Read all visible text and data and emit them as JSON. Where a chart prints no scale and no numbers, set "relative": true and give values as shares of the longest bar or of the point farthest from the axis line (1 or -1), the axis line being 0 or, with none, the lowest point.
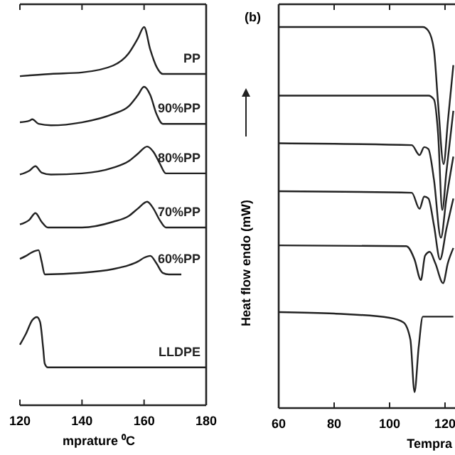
{
  "chart_data": [
    {
      "type": "line",
      "relative": true,
      "xlabel": "mprature ⁰C",
      "xlim": [
        120,
        180
      ],
      "xticks": [
        120,
        140,
        160,
        180
      ],
      "series": [
        {
          "name": "PP",
          "color": "#222222",
          "x": [
            120,
            130,
            140,
            150,
            155,
            158,
            160,
            162,
            164,
            166,
            170,
            180
          ],
          "values": [
            0.87,
            0.876,
            0.88,
            0.898,
            0.93,
            0.97,
            1.0,
            0.94,
            0.895,
            0.876,
            0.876,
            0.876
          ]
        },
        {
          "name": "90%PP",
          "color": "#222222",
          "x": [
            120,
            123,
            124,
            126,
            130,
            140,
            150,
            155,
            158,
            160,
            162,
            164,
            166,
            170,
            180
          ],
          "values": [
            0.748,
            0.752,
            0.756,
            0.744,
            0.74,
            0.748,
            0.77,
            0.79,
            0.82,
            0.842,
            0.82,
            0.77,
            0.744,
            0.744,
            0.744
          ]
        },
        {
          "name": "80%PP",
          "color": "#222222",
          "x": [
            120,
            123,
            125,
            127,
            130,
            140,
            150,
            155,
            158,
            161,
            163,
            165,
            167,
            170,
            180
          ],
          "values": [
            0.61,
            0.62,
            0.632,
            0.615,
            0.61,
            0.613,
            0.628,
            0.645,
            0.665,
            0.684,
            0.67,
            0.64,
            0.613,
            0.613,
            0.613
          ]
        },
        {
          "name": "70%PP",
          "color": "#222222",
          "x": [
            120,
            123,
            125,
            127,
            129,
            140,
            150,
            155,
            158,
            161,
            163,
            165,
            167,
            180
          ],
          "values": [
            0.478,
            0.49,
            0.508,
            0.485,
            0.47,
            0.47,
            0.485,
            0.5,
            0.52,
            0.538,
            0.52,
            0.49,
            0.47,
            0.47
          ]
        },
        {
          "name": "60%PP",
          "color": "#222222",
          "x": [
            120,
            122,
            124,
            126,
            127,
            128,
            140,
            150,
            155,
            158,
            160,
            162,
            164,
            166,
            168,
            172
          ],
          "values": [
            0.387,
            0.395,
            0.405,
            0.41,
            0.38,
            0.346,
            0.35,
            0.36,
            0.37,
            0.38,
            0.39,
            0.395,
            0.375,
            0.35,
            0.346,
            0.346
          ]
        },
        {
          "name": "LLDPE",
          "color": "#222222",
          "x": [
            120,
            122,
            124,
            125.5,
            126.5,
            127.5,
            128,
            129,
            140,
            180
          ],
          "values": [
            0.16,
            0.19,
            0.225,
            0.233,
            0.22,
            0.15,
            0.11,
            0.1,
            0.1,
            0.1
          ]
        }
      ]
    },
    {
      "type": "line",
      "relative": true,
      "title": "(b)",
      "xlabel": "Tempra",
      "ylabel": "Heat flow endo (mW)",
      "xlim": [
        60,
        123.6
      ],
      "xticks": [
        60,
        80,
        100,
        120
      ],
      "series": [
        {
          "color": "#222222",
          "x": [
            60,
            90,
            112,
            114,
            116,
            117.5,
            119.5,
            121,
            123
          ],
          "values": [
            1,
            1,
            1,
            0.99,
            0.94,
            0.8,
            0.64,
            0.75,
            0.9
          ]
        },
        {
          "color": "#222222",
          "x": [
            60,
            114,
            116,
            117.5,
            119,
            120.5,
            123
          ],
          "values": [
            0.82,
            0.82,
            0.81,
            0.72,
            0.52,
            0.62,
            0.78
          ]
        },
        {
          "color": "#222222",
          "x": [
            60,
            108,
            110.8,
            112.5,
            114,
            116,
            118.5,
            120.5,
            123
          ],
          "values": [
            0.695,
            0.69,
            0.664,
            0.685,
            0.68,
            0.6,
            0.447,
            0.55,
            0.66
          ]
        },
        {
          "color": "#222222",
          "x": [
            60,
            108,
            110.8,
            112.5,
            114,
            116,
            118.2,
            120.5,
            123
          ],
          "values": [
            0.569,
            0.565,
            0.523,
            0.555,
            0.55,
            0.48,
            0.39,
            0.47,
            0.55
          ]
        },
        {
          "color": "#222222",
          "x": [
            60,
            106,
            109,
            111.3,
            112.8,
            114.5,
            116.5,
            119.3,
            121,
            123
          ],
          "values": [
            0.427,
            0.425,
            0.39,
            0.336,
            0.4,
            0.41,
            0.38,
            0.328,
            0.38,
            0.42
          ]
        },
        {
          "color": "#222222",
          "x": [
            60,
            80,
            100,
            105,
            107.5,
            109,
            110.5,
            112,
            123
          ],
          "values": [
            0.252,
            0.248,
            0.237,
            0.225,
            0.18,
            0.042,
            0.16,
            0.24,
            0.24
          ]
        }
      ]
    }
  ]
}
